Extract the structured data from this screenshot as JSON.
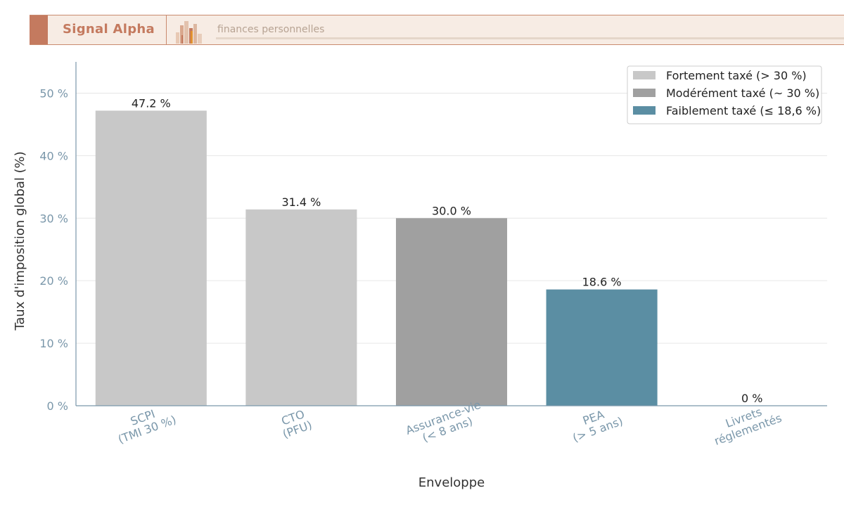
{
  "header": {
    "brand": "Signal Alpha",
    "tagline": "finances personnelles"
  },
  "colors": {
    "high": "#c8c8c8",
    "moderate": "#a0a0a0",
    "low": "#5b8ea3",
    "axis_text": "#7a97aa",
    "banner_accent": "#c47a5f"
  },
  "chart_data": {
    "type": "bar",
    "xlabel": "Enveloppe",
    "ylabel": "Taux d'imposition global (%)",
    "ylim": [
      0,
      55
    ],
    "yticks": [
      0,
      10,
      20,
      30,
      40,
      50
    ],
    "ytick_labels": [
      "0 %",
      "10 %",
      "20 %",
      "30 %",
      "40 %",
      "50 %"
    ],
    "grid": true,
    "legend_position": "top-right",
    "categories": [
      [
        "SCPI",
        "(TMI 30 %)"
      ],
      [
        "CTO",
        "(PFU)"
      ],
      [
        "Assurance-vie",
        "(< 8 ans)"
      ],
      [
        "PEA",
        "(> 5 ans)"
      ],
      [
        "Livrets",
        "réglementés"
      ]
    ],
    "values": [
      47.2,
      31.4,
      30.0,
      18.6,
      0
    ],
    "value_labels": [
      "47.2 %",
      "31.4 %",
      "30.0 %",
      "18.6 %",
      "0 %"
    ],
    "groups": [
      "high",
      "high",
      "moderate",
      "low",
      "low"
    ],
    "legend": [
      {
        "key": "high",
        "label": "Fortement taxé (> 30 %)"
      },
      {
        "key": "moderate",
        "label": "Modérément taxé (~ 30 %)"
      },
      {
        "key": "low",
        "label": "Faiblement taxé (≤ 18,6 %)"
      }
    ]
  }
}
